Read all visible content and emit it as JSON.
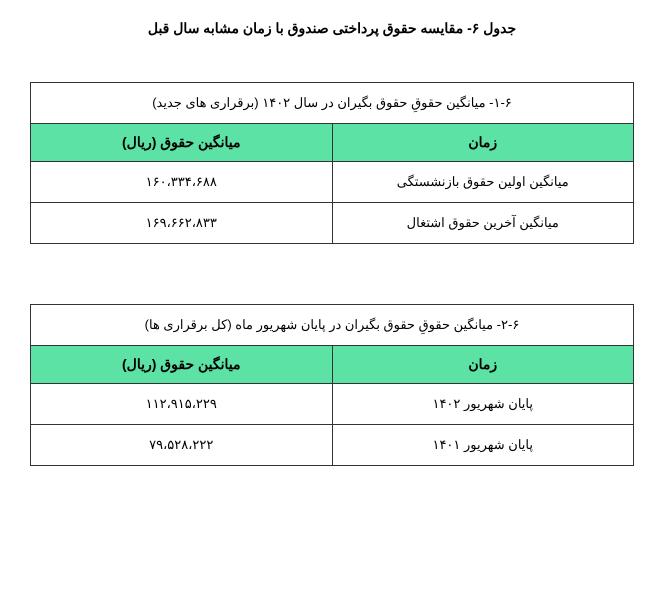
{
  "main_title": "جدول ۶- مقایسه حقوق پرداختی صندوق با زمان مشابه سال قبل",
  "table1": {
    "title": "۱-۶- میانگین حقوقِ حقوق بگیران در سال ۱۴۰۲ (برقراری های جدید)",
    "header_time": "زمان",
    "header_value": "میانگین حقوق (ریال)",
    "rows": [
      {
        "time": "میانگین اولین حقوق بازنشستگی",
        "value": "۱۶۰،۳۳۴،۶۸۸"
      },
      {
        "time": "میانگین آخرین حقوق اشتغال",
        "value": "۱۶۹،۶۶۲،۸۳۳"
      }
    ]
  },
  "table2": {
    "title": "۲-۶- میانگین حقوقِ حقوق بگیران در پایان شهریور ماه (کل برقراری ها)",
    "header_time": "زمان",
    "header_value": "میانگین حقوق (ریال)",
    "rows": [
      {
        "time": "پایان شهریور ۱۴۰۲",
        "value": "۱۱۲،۹۱۵،۲۲۹"
      },
      {
        "time": "پایان شهریور ۱۴۰۱",
        "value": "۷۹،۵۲۸،۲۲۲"
      }
    ]
  },
  "colors": {
    "header_bg": "#5de2a6",
    "border": "#333333",
    "text": "#000000",
    "background": "#ffffff"
  }
}
